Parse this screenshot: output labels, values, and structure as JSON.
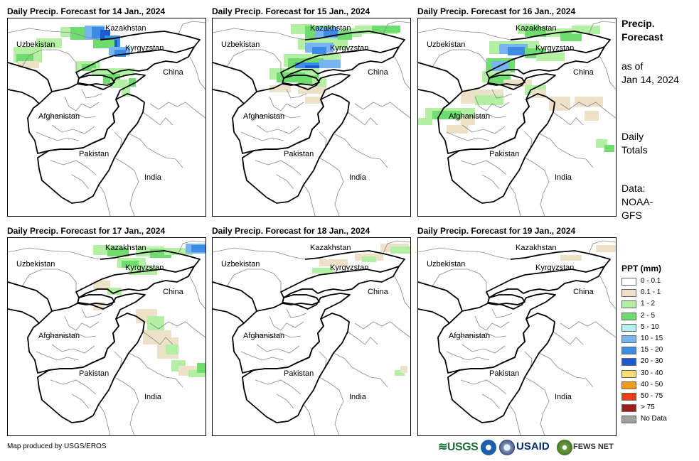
{
  "panels": [
    {
      "title": "Daily Precip. Forecast for 14 Jan., 2024",
      "pattern": "p14"
    },
    {
      "title": "Daily Precip. Forecast for 15 Jan., 2024",
      "pattern": "p15"
    },
    {
      "title": "Daily Precip. Forecast for 16 Jan., 2024",
      "pattern": "p16"
    },
    {
      "title": "Daily Precip. Forecast for 17 Jan., 2024",
      "pattern": "p17"
    },
    {
      "title": "Daily Precip. Forecast for 18 Jan., 2024",
      "pattern": "p18"
    },
    {
      "title": "Daily Precip. Forecast for 19 Jan., 2024",
      "pattern": "p19"
    }
  ],
  "map_labels": {
    "kazakhstan": "Kazakhstan",
    "uzbekistan": "Uzbekistan",
    "kyrgyzstan": "Kyrgyzstan",
    "china": "China",
    "afghanistan": "Afghanistan",
    "pakistan": "Pakistan",
    "india": "India"
  },
  "side": {
    "title_line1": "Precip.",
    "title_line2": "Forecast",
    "asof_line1": "as of",
    "asof_line2": "Jan 14, 2024",
    "daily_line1": "Daily",
    "daily_line2": "Totals",
    "data_line1": "Data:",
    "data_line2": "NOAA-",
    "data_line3": "GFS"
  },
  "legend": {
    "title": "PPT (mm)",
    "items": [
      {
        "label": "0 - 0.1",
        "color": "#ffffff"
      },
      {
        "label": "0.1 - 1",
        "color": "#ede1c8"
      },
      {
        "label": "1 - 2",
        "color": "#b4f0a4"
      },
      {
        "label": "2 - 5",
        "color": "#6fdc6f"
      },
      {
        "label": "5 - 10",
        "color": "#b4f0f0"
      },
      {
        "label": "10 - 15",
        "color": "#78b4f0"
      },
      {
        "label": "15 - 20",
        "color": "#3c8ce6"
      },
      {
        "label": "20 - 30",
        "color": "#1e5ad2"
      },
      {
        "label": "30 - 40",
        "color": "#fadc78"
      },
      {
        "label": "40 - 50",
        "color": "#fa9b14"
      },
      {
        "label": "50 - 75",
        "color": "#f03c14"
      },
      {
        "label": "> 75",
        "color": "#a01e1e"
      },
      {
        "label": "No Data",
        "color": "#a0a0a0"
      }
    ]
  },
  "credit": "Map produced by USGS/EROS",
  "logos": {
    "usgs": "USGS",
    "usaid": "USAID",
    "fews": "FEWS NET"
  }
}
